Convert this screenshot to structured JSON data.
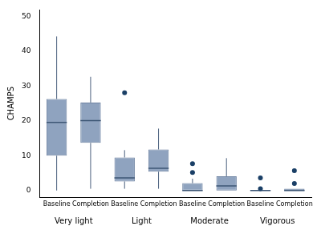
{
  "chart_data": {
    "type": "box",
    "y_label": "CHAMPS",
    "groups": [
      "Very light",
      "Light",
      "Moderate",
      "Vigorous"
    ],
    "categories": [
      "Baseline",
      "Completion"
    ],
    "boxes": [
      [
        {
          "min": 0,
          "q1": 10,
          "median": 19.6,
          "q3": 26.3,
          "max": 44.3,
          "outliers": []
        },
        {
          "min": 0.5,
          "q1": 13.7,
          "median": 20.1,
          "q3": 25.3,
          "max": 32.7,
          "outliers": []
        }
      ],
      [
        {
          "min": 0.5,
          "q1": 2.6,
          "median": 3.6,
          "q3": 9.5,
          "max": 11.6,
          "outliers": [
            28.1
          ]
        },
        {
          "min": 0.5,
          "q1": 5.4,
          "median": 6.4,
          "q3": 11.8,
          "max": 17.8,
          "outliers": []
        }
      ],
      [
        {
          "min": 0,
          "q1": 0,
          "median": 0,
          "q3": 2.1,
          "max": 3.4,
          "outliers": [
            5.2,
            7.7
          ]
        },
        {
          "min": 0,
          "q1": 0,
          "median": 1.3,
          "q3": 4.1,
          "max": 9.3,
          "outliers": []
        }
      ],
      [
        {
          "min": 0,
          "q1": 0,
          "median": 0,
          "q3": 0,
          "max": 0,
          "outliers": [
            0.5,
            3.6
          ]
        },
        {
          "min": 0,
          "q1": 0,
          "median": 0,
          "q3": 0.5,
          "max": 0.5,
          "outliers": [
            2,
            5.7
          ]
        }
      ]
    ],
    "color": "#8fa3bf",
    "ylim": [
      -2,
      52
    ],
    "yticks": [
      0,
      10,
      20,
      30,
      40,
      50
    ],
    "grid": false
  }
}
